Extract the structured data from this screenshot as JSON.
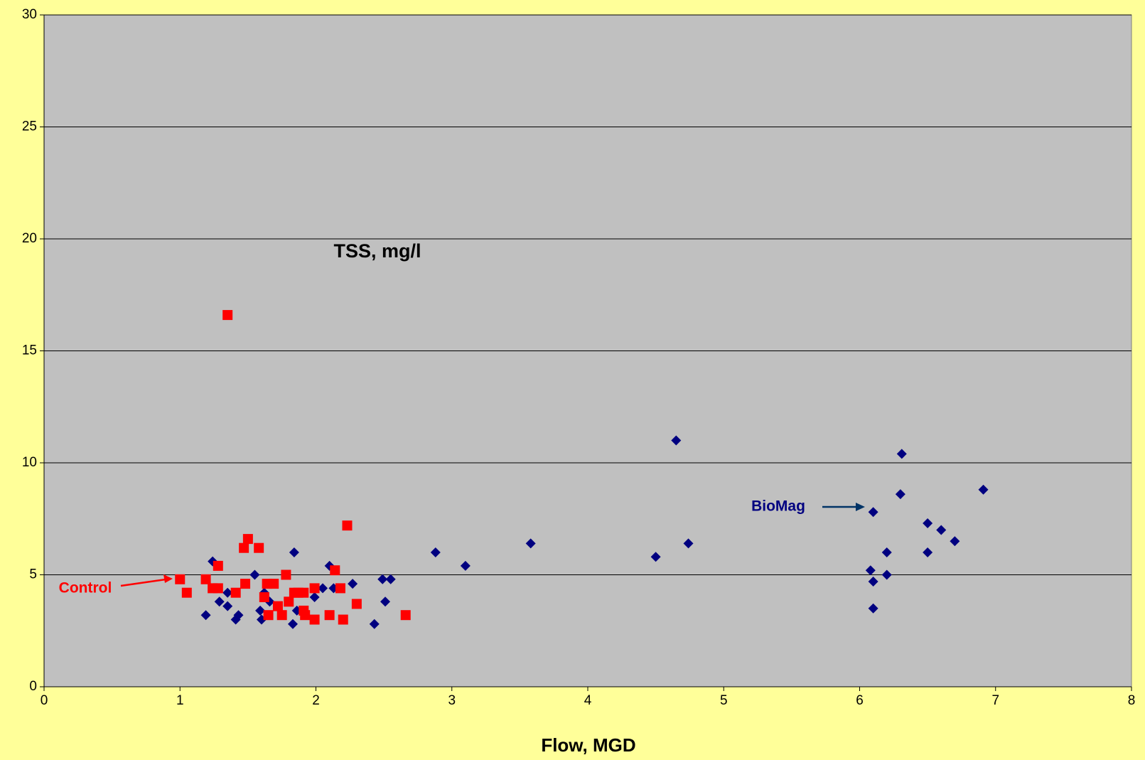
{
  "chart_data": {
    "type": "scatter",
    "title": "TSS, mg/l",
    "x_label": "Flow, MGD",
    "xlim": [
      0,
      8
    ],
    "xticks": [
      0,
      1,
      2,
      3,
      4,
      5,
      6,
      7,
      8
    ],
    "ylim": [
      0,
      30
    ],
    "yticks": [
      0,
      5,
      10,
      15,
      20,
      25,
      30
    ],
    "grid": true,
    "series": [
      {
        "name": "BioMag",
        "color": "#000080",
        "marker": "diamond",
        "x": [
          1.24,
          1.19,
          1.29,
          1.35,
          1.35,
          1.41,
          1.43,
          1.55,
          1.59,
          1.6,
          1.62,
          1.66,
          1.84,
          1.83,
          1.86,
          1.99,
          2.05,
          2.1,
          2.13,
          2.27,
          2.49,
          2.55,
          2.51,
          2.43,
          2.88,
          3.1,
          3.58,
          4.5,
          4.65,
          4.74,
          6.1,
          6.08,
          6.1,
          6.1,
          6.2,
          6.2,
          6.31,
          6.3,
          6.5,
          6.5,
          6.6,
          6.7,
          6.91
        ],
        "values": [
          5.6,
          3.2,
          3.8,
          4.2,
          3.6,
          3.0,
          3.2,
          5.0,
          3.4,
          3.0,
          4.2,
          3.8,
          6.0,
          2.8,
          3.4,
          4.0,
          4.4,
          5.4,
          4.4,
          4.6,
          4.8,
          4.8,
          3.8,
          2.8,
          6.0,
          5.4,
          6.4,
          5.8,
          11.0,
          6.4,
          7.8,
          5.2,
          4.7,
          3.5,
          6.0,
          5.0,
          10.4,
          8.6,
          7.3,
          6.0,
          7.0,
          6.5,
          8.8
        ]
      },
      {
        "name": "Control",
        "color": "#ff0000",
        "marker": "square",
        "x": [
          1.0,
          1.05,
          1.19,
          1.24,
          1.28,
          1.28,
          1.35,
          1.41,
          1.47,
          1.48,
          1.5,
          1.58,
          1.62,
          1.64,
          1.69,
          1.65,
          1.72,
          1.75,
          1.78,
          1.8,
          1.84,
          1.87,
          1.91,
          1.91,
          1.92,
          1.99,
          1.99,
          2.1,
          2.14,
          2.18,
          2.2,
          2.23,
          2.3,
          2.66
        ],
        "values": [
          4.8,
          4.2,
          4.8,
          4.4,
          5.4,
          4.4,
          16.6,
          4.2,
          6.2,
          4.6,
          6.6,
          6.2,
          4.0,
          4.6,
          4.6,
          3.2,
          3.6,
          3.2,
          5.0,
          3.8,
          4.2,
          4.2,
          4.2,
          3.4,
          3.2,
          4.4,
          3.0,
          3.2,
          5.2,
          4.4,
          3.0,
          7.2,
          3.7,
          3.2
        ]
      }
    ]
  }
}
